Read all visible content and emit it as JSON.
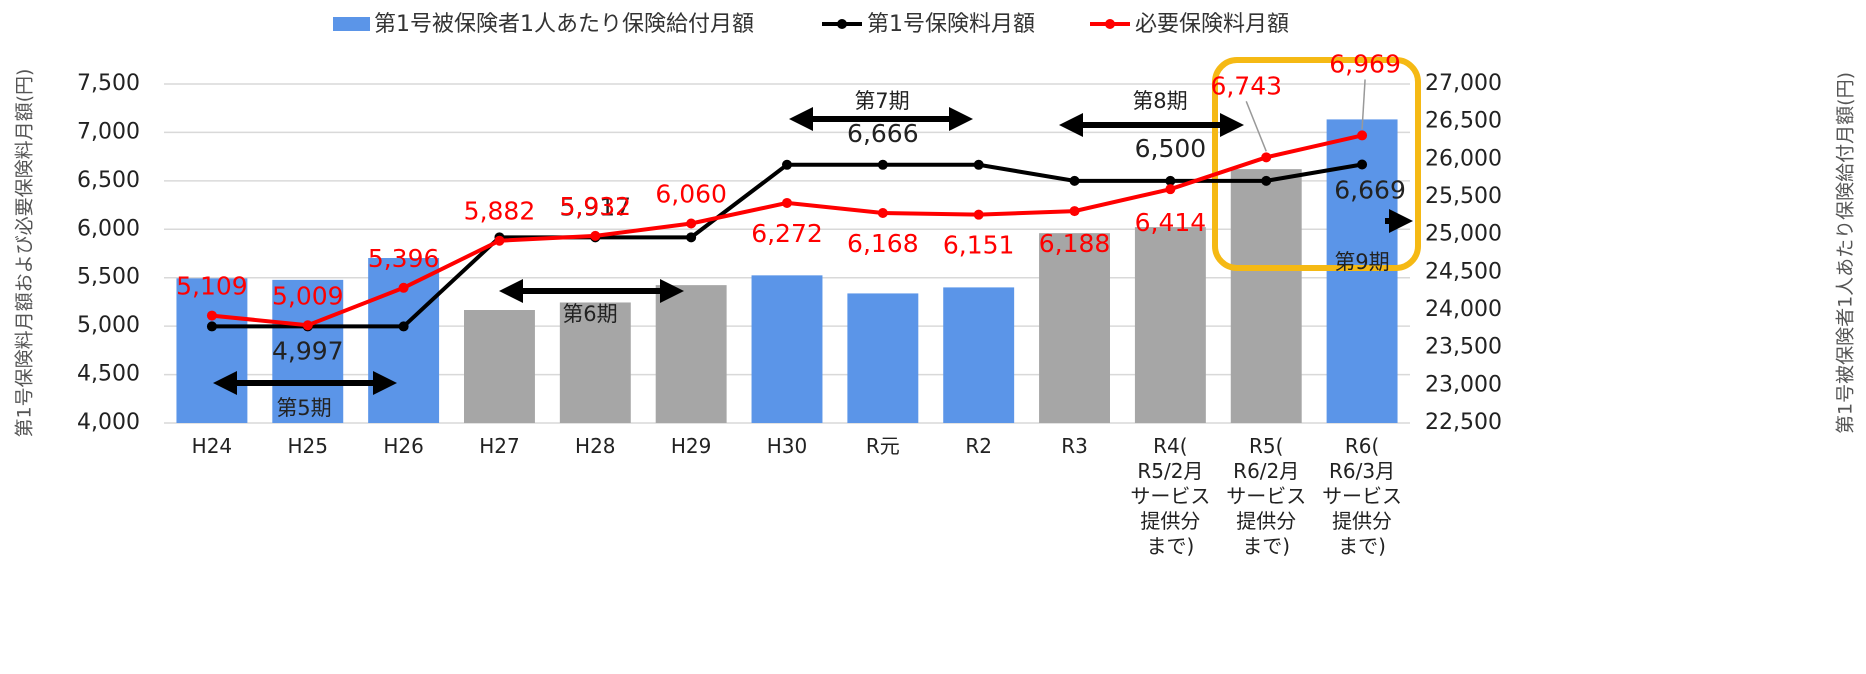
{
  "chart_data": {
    "type": "bar_line",
    "categories": [
      "H24",
      "H25",
      "H26",
      "H27",
      "H28",
      "H29",
      "H30",
      "R元",
      "R2",
      "R3",
      "R4(\nR5/2月\nサービス\n提供分\nまで)",
      "R5(\nR6/2月\nサービス\n提供分\nまで)",
      "R6(\nR6/3月\nサービス\n提供分\nまで)"
    ],
    "series": [
      {
        "name": "第1号被保険者1人あたり保険給付月額",
        "type": "bar",
        "axis": "y2",
        "color": "#5b95e8",
        "colors": [
          "#5b95e8",
          "#5b95e8",
          "#5b95e8",
          "#a6a6a6",
          "#a6a6a6",
          "#a6a6a6",
          "#5b95e8",
          "#5b95e8",
          "#5b95e8",
          "#a6a6a6",
          "#a6a6a6",
          "#a6a6a6",
          "#5b95e8"
        ],
        "values": [
          24420,
          24400,
          24690,
          24000,
          24100,
          24330,
          24460,
          24220,
          24300,
          25020,
          25100,
          25870,
          26530
        ]
      },
      {
        "name": "第1号保険料月額",
        "type": "line",
        "axis": "y",
        "color": "#000000",
        "values": [
          4997,
          4997,
          4997,
          5917,
          5917,
          5917,
          6666,
          6666,
          6666,
          6500,
          6500,
          6500,
          6669
        ],
        "value_labels": [
          null,
          "4,997",
          null,
          null,
          "5,917",
          null,
          null,
          "6,666",
          null,
          null,
          "6,500",
          null,
          "6,669"
        ]
      },
      {
        "name": "必要保険料月額",
        "type": "line",
        "axis": "y",
        "color": "#ff0000",
        "values": [
          5109,
          5009,
          5396,
          5882,
          5932,
          6060,
          6272,
          6168,
          6151,
          6188,
          6414,
          6743,
          6969
        ],
        "value_labels": [
          "5,109",
          "5,009",
          "5,396",
          "5,882",
          "5,932",
          "6,060",
          "6,272",
          "6,168",
          "6,151",
          "6,188",
          "6,414",
          "6,743",
          "6,969"
        ]
      }
    ],
    "ylabel": "第1号保険料月額および必要保険料月額(円)",
    "y2label": "第1号被保険者1人あたり保険給付月額(円)",
    "ylim": [
      4000,
      7500
    ],
    "yticks": [
      {
        "value": 4000,
        "label": "4,000"
      },
      {
        "value": 4500,
        "label": "4,500"
      },
      {
        "value": 5000,
        "label": "5,000"
      },
      {
        "value": 5500,
        "label": "5,500"
      },
      {
        "value": 6000,
        "label": "6,000"
      },
      {
        "value": 6500,
        "label": "6,500"
      },
      {
        "value": 7000,
        "label": "7,000"
      },
      {
        "value": 7500,
        "label": "7,500"
      }
    ],
    "y2lim": [
      22500,
      27000
    ],
    "y2ticks": [
      {
        "value": 22500,
        "label": "22,500"
      },
      {
        "value": 23000,
        "label": "23,000"
      },
      {
        "value": 23500,
        "label": "23,500"
      },
      {
        "value": 24000,
        "label": "24,000"
      },
      {
        "value": 24500,
        "label": "24,500"
      },
      {
        "value": 25000,
        "label": "25,000"
      },
      {
        "value": 25500,
        "label": "25,500"
      },
      {
        "value": 26000,
        "label": "26,000"
      },
      {
        "value": 26500,
        "label": "26,500"
      },
      {
        "value": 27000,
        "label": "27,000"
      }
    ],
    "grid": true,
    "legend": "top",
    "annotations": [
      "第5期",
      "第6期",
      "第7期",
      "第8期",
      "第9期"
    ]
  }
}
